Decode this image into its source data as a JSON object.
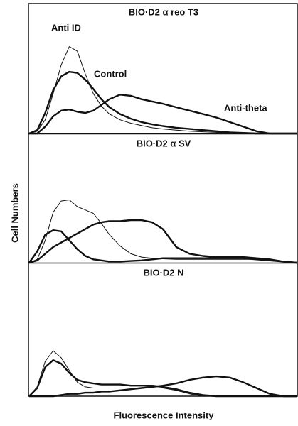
{
  "y_label": "Cell Numbers",
  "x_label": "Fluorescence Intensity",
  "chart_data": [
    {
      "type": "line",
      "title": "BIO·D2 α reo T3",
      "xlim": [
        0,
        100
      ],
      "ylim": [
        0,
        100
      ],
      "x": [
        0,
        3,
        6,
        9,
        12,
        15,
        18,
        21,
        24,
        27,
        30,
        34,
        38,
        42,
        46,
        50,
        55,
        60,
        65,
        70,
        75,
        80,
        85,
        90,
        95,
        100
      ],
      "series": [
        {
          "color": "#111",
          "width": 1,
          "values": [
            0,
            2,
            12,
            35,
            60,
            76,
            72,
            52,
            35,
            24,
            17,
            12,
            9,
            7,
            5,
            4,
            3,
            2,
            1.5,
            1,
            0.5,
            0,
            0,
            0,
            0,
            0
          ]
        },
        {
          "color": "#111",
          "width": 2.4,
          "values": [
            0,
            3,
            18,
            38,
            50,
            54,
            53,
            47,
            39,
            30,
            23,
            17,
            13,
            10,
            8,
            6.5,
            5,
            4,
            3,
            2,
            1,
            0.5,
            0,
            0,
            0,
            0
          ]
        },
        {
          "color": "#111",
          "width": 2.4,
          "values": [
            0,
            0,
            6,
            15,
            20,
            21,
            19,
            18,
            20,
            25,
            30,
            34,
            33,
            30,
            28,
            26,
            23,
            20,
            17,
            14,
            10,
            6,
            2,
            0,
            0,
            0
          ]
        }
      ],
      "annotations": [
        "Anti ID",
        "Control",
        "Anti-theta"
      ]
    },
    {
      "type": "line",
      "title": "BIO·D2 α SV",
      "xlim": [
        0,
        100
      ],
      "ylim": [
        0,
        100
      ],
      "x": [
        0,
        3,
        6,
        9,
        12,
        15,
        18,
        21,
        24,
        27,
        30,
        34,
        38,
        42,
        46,
        50,
        55,
        60,
        65,
        70,
        75,
        80,
        85,
        90,
        95,
        100
      ],
      "series": [
        {
          "color": "#111",
          "width": 1,
          "values": [
            0,
            3,
            20,
            45,
            55,
            56,
            50,
            47,
            44,
            35,
            25,
            15,
            8,
            5,
            4,
            3.5,
            3,
            3,
            3,
            3,
            3,
            3,
            3,
            3,
            1,
            0
          ]
        },
        {
          "color": "#111",
          "width": 2.4,
          "values": [
            0,
            10,
            25,
            29,
            28,
            20,
            12,
            6,
            3,
            2,
            1,
            1,
            1.5,
            2,
            3,
            4,
            4,
            4,
            4,
            4,
            4,
            4,
            3,
            2,
            1,
            0
          ]
        },
        {
          "color": "#111",
          "width": 2.4,
          "values": [
            0,
            2,
            8,
            14,
            18,
            22,
            26,
            30,
            34,
            36,
            37,
            37,
            38,
            38,
            36,
            30,
            14,
            8,
            6,
            5,
            5,
            5,
            4,
            3,
            1,
            0
          ]
        }
      ]
    },
    {
      "type": "line",
      "title": "BIO·D2 N",
      "xlim": [
        0,
        100
      ],
      "ylim": [
        0,
        100
      ],
      "x": [
        0,
        3,
        6,
        9,
        12,
        15,
        18,
        21,
        24,
        27,
        30,
        34,
        38,
        42,
        46,
        50,
        55,
        60,
        65,
        70,
        75,
        80,
        85,
        90,
        95,
        100
      ],
      "series": [
        {
          "color": "#111",
          "width": 1,
          "values": [
            0,
            8,
            30,
            39,
            33,
            22,
            12,
            8,
            7,
            7,
            7,
            7,
            7,
            7,
            7,
            7,
            5,
            2,
            0,
            0,
            0,
            0,
            0,
            0,
            0,
            0
          ]
        },
        {
          "color": "#111",
          "width": 2.4,
          "values": [
            0,
            7,
            25,
            31,
            28,
            20,
            14,
            12,
            11,
            10,
            10,
            10,
            9,
            9,
            9,
            8,
            6,
            3,
            1,
            0,
            0,
            0,
            0,
            0,
            0,
            0
          ]
        },
        {
          "color": "#111",
          "width": 2.4,
          "values": [
            0,
            0,
            0,
            0,
            1,
            2,
            2,
            3,
            3,
            4,
            4,
            5,
            6,
            7,
            8,
            9,
            11,
            14,
            16,
            17,
            16,
            12,
            7,
            2,
            0,
            0
          ]
        }
      ]
    }
  ]
}
